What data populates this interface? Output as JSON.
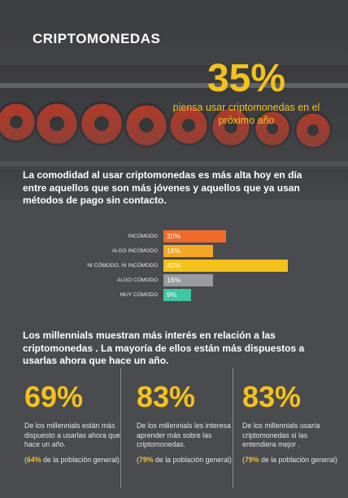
{
  "header": {
    "title": "CRIPTOMONEDAS",
    "stat_value": "35%",
    "stat_caption": "piensa usar criptomonedas en el próximo año"
  },
  "intro_text": "La comodidad al usar criptomonedas es más alta hoy en día entre aquellos que son más jóvenes y aquellos que ya usan métodos de pago sin contacto.",
  "chart_data": {
    "type": "bar",
    "orientation": "horizontal",
    "categories": [
      "INCÓMODO",
      "ALGO INCÓMODO",
      "NI CÓMODO, NI INCÓMODO",
      "ALGO CÓMODO",
      "MUY CÓMODO"
    ],
    "values": [
      20,
      16,
      40,
      16,
      9
    ],
    "value_labels": [
      "20%",
      "16%",
      "40%",
      "16%",
      "9%"
    ],
    "colors": [
      "#f26a2a",
      "#f5a623",
      "#f5c21b",
      "#9a9b9e",
      "#3fc6a5"
    ],
    "xlim": [
      0,
      40
    ]
  },
  "millennials": {
    "text": "Los millennials muestran más interés en relación a las criptomonedas .  La mayoría de ellos están más dispuestos a usarlas ahora que hace un año.",
    "stats": [
      {
        "pct": "69%",
        "desc": "De los millennials están más dispuesto a usarlas ahora que hace un año.",
        "note_pct": "64%",
        "note_text": " de la población general)"
      },
      {
        "pct": "83%",
        "desc": "De los millennials les interesa aprender más sobre las criptomonedas.",
        "note_pct": "79%",
        "note_text": " de la población general)"
      },
      {
        "pct": "83%",
        "desc": "De los millennials usaría criptomonedas si las entendiera mejor .",
        "note_pct": "79%",
        "note_text": " de la población general)"
      }
    ]
  },
  "colors": {
    "accent": "#f5c21b",
    "background": "#4a4b4e"
  }
}
